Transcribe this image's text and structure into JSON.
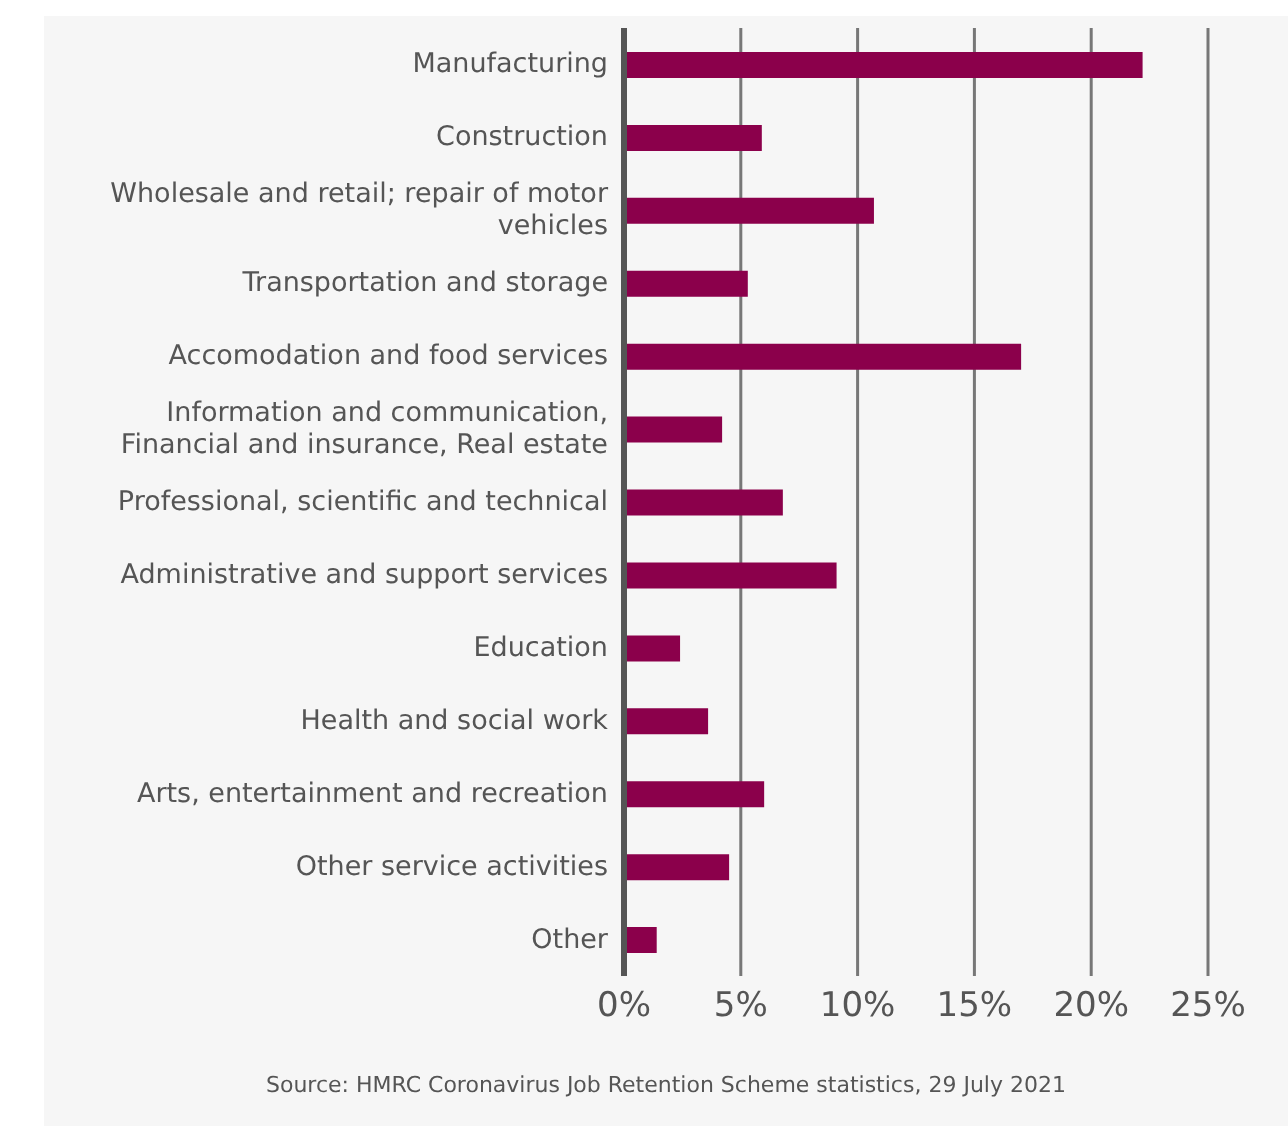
{
  "chart_data": {
    "type": "bar",
    "orientation": "horizontal",
    "categories": [
      "Manufacturing",
      "Construction",
      "Wholesale and retail; repair of motor vehicles",
      "Transportation and storage",
      "Accomodation and food services",
      "Information and communication, Financial and insurance, Real estate",
      "Professional, scientific and technical",
      "Administrative and support services",
      "Education",
      "Health and social work",
      "Arts, entertainment and recreation",
      "Other service activities",
      "Other"
    ],
    "values": [
      22.2,
      5.9,
      10.7,
      5.3,
      17.0,
      4.2,
      6.8,
      9.1,
      2.4,
      3.6,
      6.0,
      4.5,
      1.4
    ],
    "color": "#8b004b",
    "xlim": [
      0,
      25
    ],
    "xticks": [
      {
        "value": 0,
        "label": "0%"
      },
      {
        "value": 5,
        "label": "5%"
      },
      {
        "value": 10,
        "label": "10%"
      },
      {
        "value": 15,
        "label": "15%"
      },
      {
        "value": 20,
        "label": "20%"
      },
      {
        "value": 25,
        "label": "25%"
      }
    ],
    "grid": "x",
    "legend": false,
    "annotations": [
      "Source: HMRC Coronavirus Job Retention Scheme statistics, 29 July 2021"
    ]
  }
}
